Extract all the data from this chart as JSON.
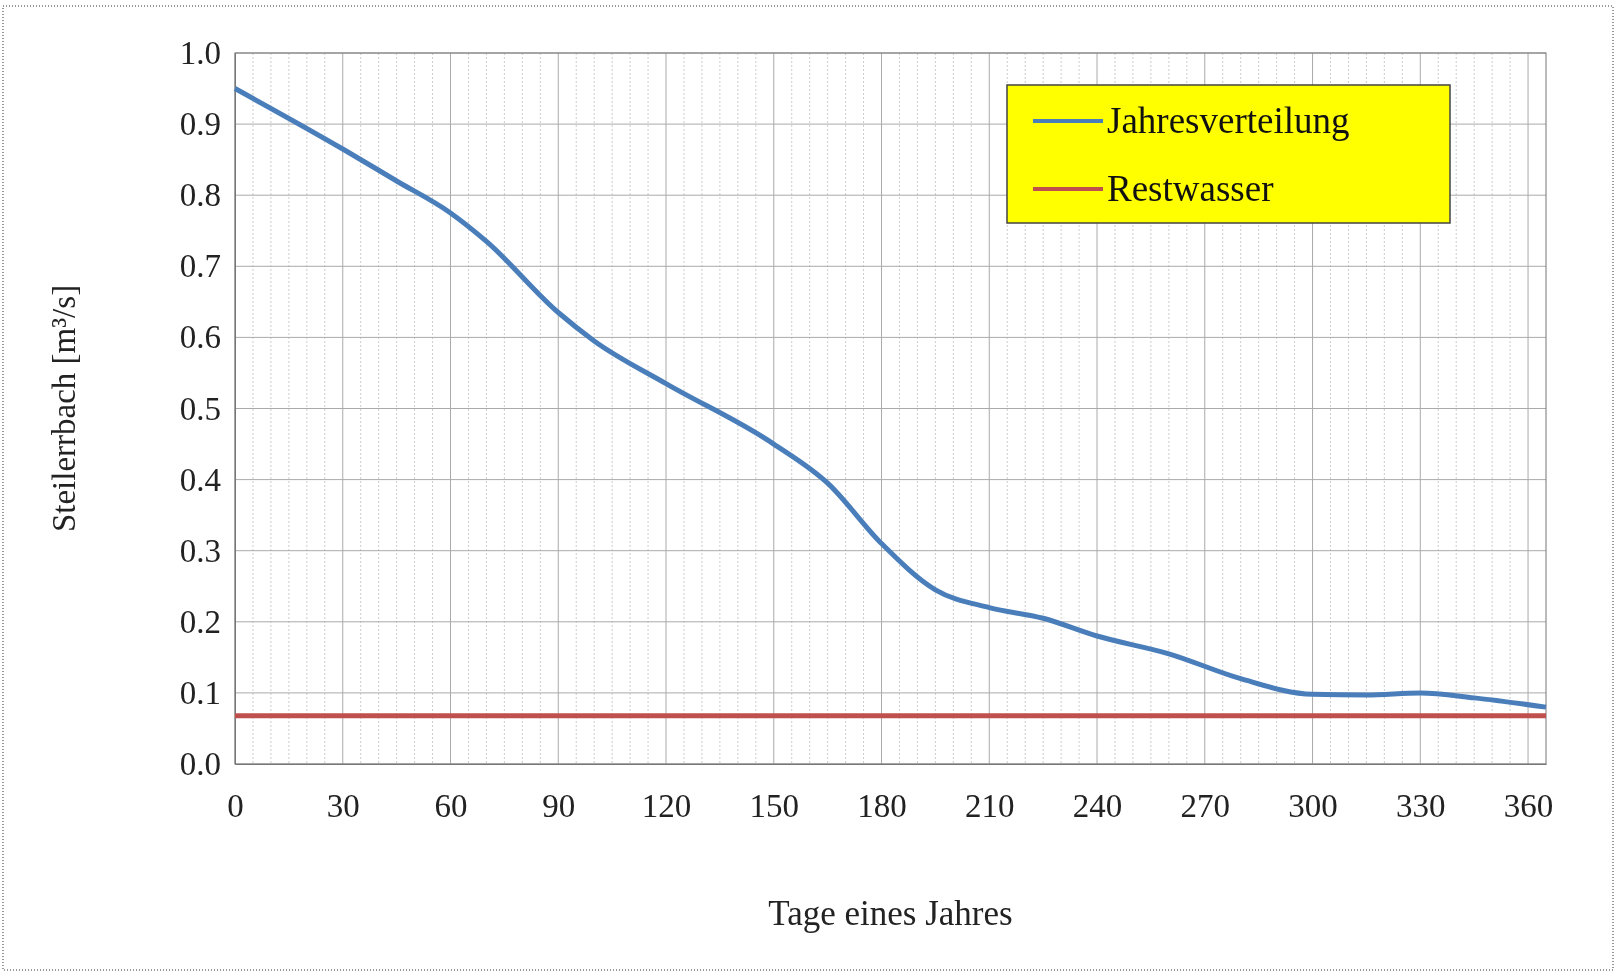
{
  "chart_data": {
    "type": "line",
    "xlabel": "Tage eines Jahres",
    "ylabel": "Steilerrbach [m³/s]",
    "xlim": [
      0,
      365
    ],
    "xticks": [
      0,
      30,
      60,
      90,
      120,
      150,
      180,
      210,
      240,
      270,
      300,
      330,
      360
    ],
    "ylim": [
      0,
      1
    ],
    "yticks": [
      {
        "value": 0,
        "label": "0.0"
      },
      {
        "value": 0.1,
        "label": "0.1"
      },
      {
        "value": 0.2,
        "label": "0.2"
      },
      {
        "value": 0.3,
        "label": "0.3"
      },
      {
        "value": 0.4,
        "label": "0.4"
      },
      {
        "value": 0.5,
        "label": "0.5"
      },
      {
        "value": 0.6,
        "label": "0.6"
      },
      {
        "value": 0.7,
        "label": "0.7"
      },
      {
        "value": 0.8,
        "label": "0.8"
      },
      {
        "value": 0.9,
        "label": "0.9"
      },
      {
        "value": 1,
        "label": "1.0"
      }
    ],
    "grid": true,
    "legend": "top right",
    "marker": "none",
    "line_style": "solid",
    "series": [
      {
        "name": "Jahresverteilung",
        "color": "#4a7ebb",
        "x": [
          0,
          30,
          45,
          60,
          70,
          90,
          100,
          120,
          150,
          165,
          180,
          195,
          210,
          225,
          240,
          260,
          280,
          300,
          315,
          330,
          345,
          365
        ],
        "values": [
          0.95,
          0.865,
          0.82,
          0.775,
          0.735,
          0.635,
          0.595,
          0.535,
          0.45,
          0.395,
          0.31,
          0.245,
          0.22,
          0.205,
          0.18,
          0.155,
          0.12,
          0.098,
          0.097,
          0.1,
          0.093,
          0.08
        ]
      },
      {
        "name": "Restwasser",
        "color": "#c0504d",
        "x": [
          0,
          365
        ],
        "values": [
          0.068,
          0.068
        ]
      }
    ]
  }
}
